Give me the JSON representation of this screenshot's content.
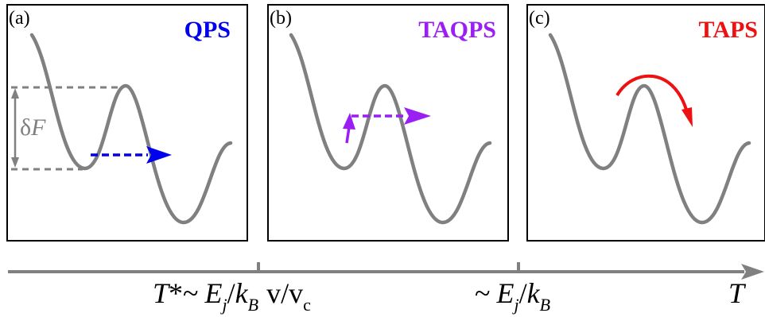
{
  "colors": {
    "frame": "#000000",
    "curve": "#808080",
    "qps": "#0000ee",
    "taqps": "#9b1ff2",
    "taps": "#ee1111",
    "axis": "#808080"
  },
  "panels": [
    {
      "letter": "(a)",
      "process": "QPS",
      "color_key": "qps"
    },
    {
      "letter": "(b)",
      "process": "TAQPS",
      "color_key": "taqps"
    },
    {
      "letter": "(c)",
      "process": "TAPS",
      "color_key": "taps"
    }
  ],
  "barrier_label": {
    "delta": "δ",
    "symbol": "F"
  },
  "axis": {
    "variable": "T",
    "tick1": {
      "t": "T",
      "star": "*",
      "tilde": "~",
      "e": "E",
      "e_sub": "j",
      "slash": "/",
      "k": "k",
      "k_sub": "B",
      "v": "v/v",
      "v_sub": "c"
    },
    "tick2": {
      "tilde": "~",
      "e": "E",
      "e_sub": "j",
      "slash": "/",
      "k": "k",
      "k_sub": "B"
    }
  }
}
